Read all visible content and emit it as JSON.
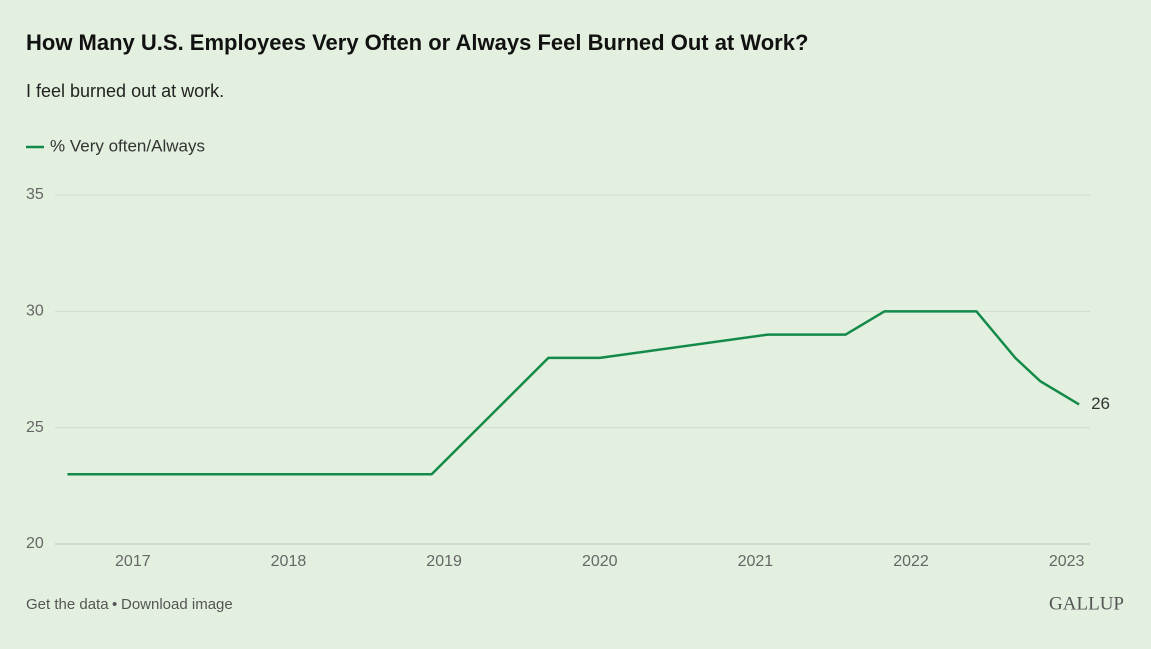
{
  "chart_data": {
    "type": "line",
    "title": "How Many U.S. Employees Very Often or Always Feel Burned Out at Work?",
    "subtitle": "I feel burned out at work.",
    "x": [
      2016.58,
      2018.92,
      2019.67,
      2020.0,
      2021.08,
      2021.58,
      2021.83,
      2022.42,
      2022.67,
      2022.83,
      2023.08
    ],
    "series": [
      {
        "name": "% Very often/Always",
        "color": "#138a4a",
        "values": [
          23,
          23,
          28,
          28,
          29,
          29,
          30,
          30,
          28,
          27,
          26
        ]
      }
    ],
    "xlim": [
      2016.5,
      2023.15
    ],
    "xticks": [
      2017,
      2018,
      2019,
      2020,
      2021,
      2022,
      2023
    ],
    "ylim": [
      20,
      35
    ],
    "yticks": [
      20,
      25,
      30,
      35
    ],
    "grid": true,
    "legend": "top-left",
    "footer_links": [
      "Get the data",
      "Download image"
    ],
    "footer_separator": "•",
    "brand": "GALLUP"
  }
}
